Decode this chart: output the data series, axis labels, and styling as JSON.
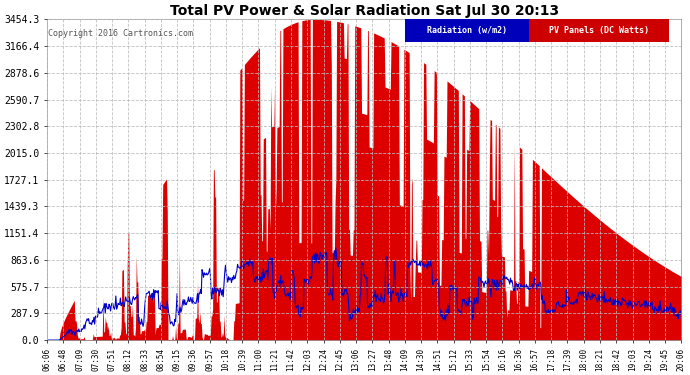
{
  "title": "Total PV Power & Solar Radiation Sat Jul 30 20:13",
  "copyright": "Copyright 2016 Cartronics.com",
  "legend_items": [
    "Radiation (w/m2)",
    "PV Panels (DC Watts)"
  ],
  "legend_colors": [
    "#0000bb",
    "#cc0000"
  ],
  "yticks": [
    0.0,
    287.9,
    575.7,
    863.6,
    1151.4,
    1439.3,
    1727.1,
    2015.0,
    2302.8,
    2590.7,
    2878.6,
    3166.4,
    3454.3
  ],
  "ymax": 3454.3,
  "ymin": 0.0,
  "background_color": "#ffffff",
  "plot_bg_color": "#ffffff",
  "grid_color": "#bbbbbb",
  "pv_color": "#dd0000",
  "radiation_color": "#0000cc",
  "xtick_labels": [
    "06:06",
    "06:48",
    "07:09",
    "07:30",
    "07:51",
    "08:12",
    "08:33",
    "08:54",
    "09:15",
    "09:36",
    "09:57",
    "10:18",
    "10:39",
    "11:00",
    "11:21",
    "11:42",
    "12:03",
    "12:24",
    "12:45",
    "13:06",
    "13:27",
    "13:48",
    "14:09",
    "14:30",
    "14:51",
    "15:12",
    "15:33",
    "15:54",
    "16:16",
    "16:36",
    "16:57",
    "17:18",
    "17:39",
    "18:00",
    "18:21",
    "18:42",
    "19:03",
    "19:24",
    "19:45",
    "20:06"
  ]
}
